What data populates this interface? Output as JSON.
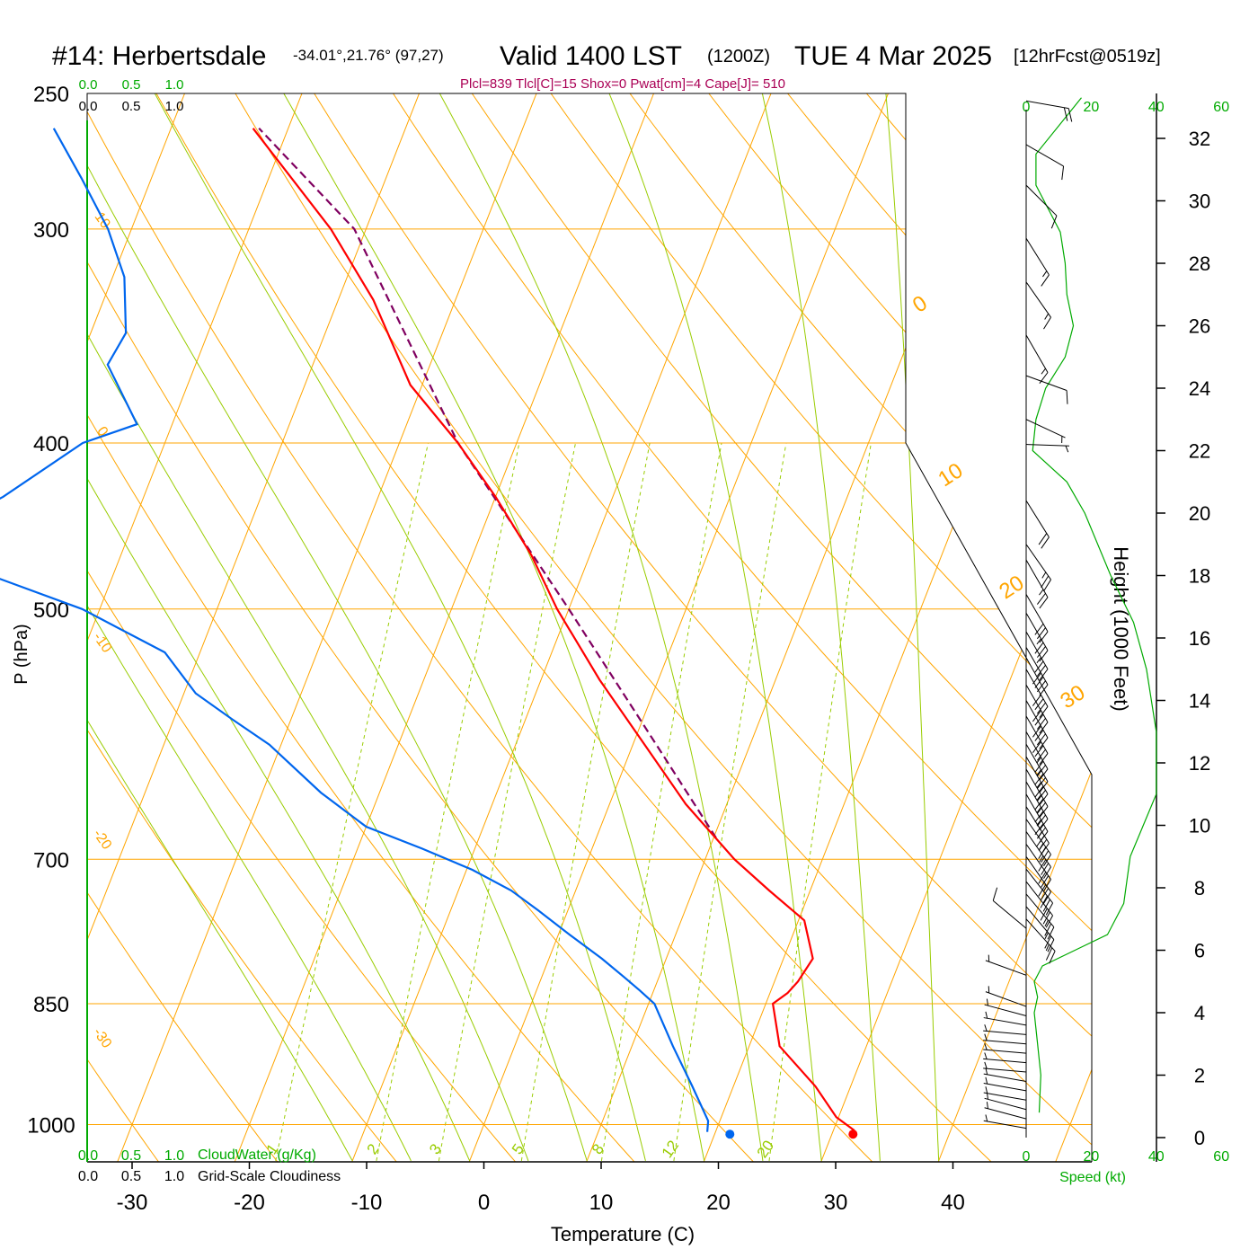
{
  "header": {
    "station": "#14: Herbertsdale",
    "coords": "-34.01°,21.76° (97,27)",
    "valid": "Valid 1400 LST",
    "utc": "(1200Z)",
    "date": "TUE 4 Mar 2025",
    "forecast": "[12hrFcst@0519z]",
    "params": "Plcl=839 Tlcl[C]=15 Shox=0 Pwat[cm]=4 Cape[J]= 510"
  },
  "colors": {
    "temperature": "#ff0000",
    "dewpoint": "#0066ee",
    "parcel": "#800060",
    "isotherm_isobar": "#ffa500",
    "dry_adiabat": "#ffa500",
    "moist_adiabat": "#99cc00",
    "mixing_ratio": "#99cc00",
    "cloud_scale": "#00aa00",
    "wind_speed": "#00aa00",
    "params_text": "#aa0055"
  },
  "chart_data": {
    "type": "skew-t log-p sounding",
    "xlabel": "Temperature (C)",
    "ylabel": "P (hPa)",
    "y2label": "Height (1000 Feet)",
    "xlim": [
      -30,
      45
    ],
    "ylim_hpa": [
      1050,
      250
    ],
    "x_ticks": [
      "-30",
      "-20",
      "-10",
      "0",
      "10",
      "20",
      "30",
      "40"
    ],
    "pressure_levels": [
      250,
      300,
      400,
      500,
      700,
      850,
      1000
    ],
    "pressure_labels": [
      "250",
      "300",
      "400",
      "500",
      "700",
      "850",
      "1000"
    ],
    "height_ticks_kft": [
      "0",
      "2",
      "4",
      "6",
      "8",
      "10",
      "12",
      "14",
      "16",
      "18",
      "20",
      "22",
      "24",
      "26",
      "28",
      "30",
      "32"
    ],
    "left_isotherm_labels": [
      "10",
      "0",
      "-10",
      "-20",
      "-30"
    ],
    "upper_isotherm_labels": [
      "0",
      "10",
      "20",
      "30"
    ],
    "mixing_ratio_labels": [
      "1",
      "2",
      "3",
      "5",
      "8",
      "12",
      "20"
    ],
    "cloud_scale": {
      "top_green": [
        "0.0",
        "0.5",
        "1.0"
      ],
      "top_black": [
        "0.0",
        "0.5",
        "1.0"
      ],
      "bottom_green": [
        "0.0",
        "0.5",
        "1.0"
      ],
      "bottom_green_label": "CloudWater (g/Kg)",
      "bottom_black": [
        "0.0",
        "0.5",
        "1.0"
      ],
      "bottom_black_label": "Grid-Scale Cloudiness"
    },
    "wind_speed_ticks": [
      "0",
      "20",
      "40",
      "60"
    ],
    "wind_speed_label": "Speed (kt)",
    "temperature": {
      "pressure": [
        1008,
        990,
        950,
        900,
        850,
        838,
        825,
        800,
        760,
        730,
        700,
        650,
        600,
        550,
        500,
        465,
        430,
        400,
        370,
        330,
        300,
        262
      ],
      "value": [
        31.8,
        29.8,
        27.0,
        22.6,
        20.6,
        21.5,
        22.0,
        22.5,
        20.5,
        16.5,
        12.5,
        6.5,
        1.0,
        -5.0,
        -11.0,
        -15.0,
        -20.0,
        -25.0,
        -31.0,
        -37.0,
        -43.0,
        -53.0
      ]
    },
    "dewpoint": {
      "pressure": [
        1010,
        995,
        950,
        900,
        850,
        835,
        820,
        800,
        775,
        750,
        730,
        710,
        690,
        670,
        640,
        600,
        580,
        560,
        530,
        500,
        460,
        430,
        400,
        390,
        360,
        345,
        320,
        300,
        280,
        262
      ],
      "value": [
        19.3,
        19.0,
        16.5,
        13.5,
        10.5,
        8.8,
        7.0,
        4.5,
        1.0,
        -2.5,
        -5.5,
        -9.5,
        -14.5,
        -20.0,
        -25.0,
        -31.0,
        -35.0,
        -39.0,
        -43.0,
        -51.5,
        -68.0,
        -62.0,
        -57.0,
        -53.0,
        -57.5,
        -57.0,
        -59.0,
        -62.0,
        -66.0,
        -70.0
      ]
    },
    "parcel": {
      "pressure": [
        680,
        600,
        500,
        400,
        300,
        262
      ],
      "value": [
        10.2,
        2.0,
        -10.0,
        -25.0,
        -41.0,
        -52.5
      ]
    },
    "surface": {
      "temperature_pressure": 1013,
      "temperature": 31.8,
      "dewpoint_pressure": 1013,
      "dewpoint": 21.3
    },
    "wind_speed_profile": {
      "height_kft": [
        0.8,
        2.0,
        3.0,
        4.0,
        4.5,
        5.0,
        5.5,
        6.0,
        6.5,
        7.5,
        9.0,
        11.0,
        13.0,
        15.0,
        16.5,
        18.0,
        20.0,
        21.0,
        22.0,
        23.0,
        24.0,
        25.0,
        26.0,
        27.0,
        28.0,
        29.0,
        30.5,
        31.5,
        33.3
      ],
      "speed_kt": [
        4.0,
        4.5,
        3.5,
        2.5,
        3.5,
        2.5,
        5.0,
        15.0,
        25.0,
        30.0,
        32.0,
        40.0,
        40.0,
        37.0,
        33.0,
        26.0,
        18.0,
        12.5,
        2.0,
        3.0,
        6.0,
        12.0,
        14.5,
        12.5,
        12.0,
        10.5,
        3.0,
        3.0,
        17.0
      ]
    },
    "wind_barbs": {
      "height_kft": [
        0.3,
        0.6,
        0.9,
        1.2,
        1.5,
        1.8,
        2.1,
        2.4,
        2.7,
        3.0,
        3.3,
        3.6,
        3.9,
        4.2,
        5.2,
        6.7,
        7.0,
        7.4,
        7.8,
        8.2,
        8.6,
        9.0,
        9.4,
        9.8,
        10.2,
        10.6,
        11.0,
        11.4,
        11.8,
        12.2,
        12.6,
        13.0,
        13.5,
        14.0,
        14.5,
        15.0,
        15.7,
        16.2,
        16.8,
        17.4,
        18.5,
        19.0,
        20.4,
        22.2,
        23.0,
        24.4,
        25.7,
        27.4,
        28.8,
        30.5,
        31.8,
        33.2
      ],
      "direction_deg": [
        100,
        105,
        105,
        100,
        100,
        100,
        95,
        95,
        95,
        95,
        95,
        100,
        105,
        110,
        110,
        130,
        318,
        320,
        320,
        322,
        322,
        325,
        325,
        325,
        325,
        328,
        330,
        330,
        330,
        330,
        330,
        330,
        330,
        330,
        330,
        330,
        330,
        330,
        330,
        330,
        330,
        325,
        328,
        272,
        295,
        290,
        330,
        325,
        328,
        315,
        300,
        280
      ],
      "speed_kt": [
        5,
        5,
        5,
        5,
        5,
        5,
        5,
        5,
        5,
        5,
        5,
        5,
        5,
        5,
        5,
        10,
        25,
        25,
        25,
        30,
        30,
        30,
        30,
        35,
        35,
        35,
        35,
        35,
        35,
        35,
        35,
        35,
        40,
        40,
        40,
        40,
        40,
        35,
        35,
        30,
        25,
        25,
        20,
        5,
        5,
        10,
        15,
        15,
        15,
        10,
        10,
        20
      ]
    }
  }
}
